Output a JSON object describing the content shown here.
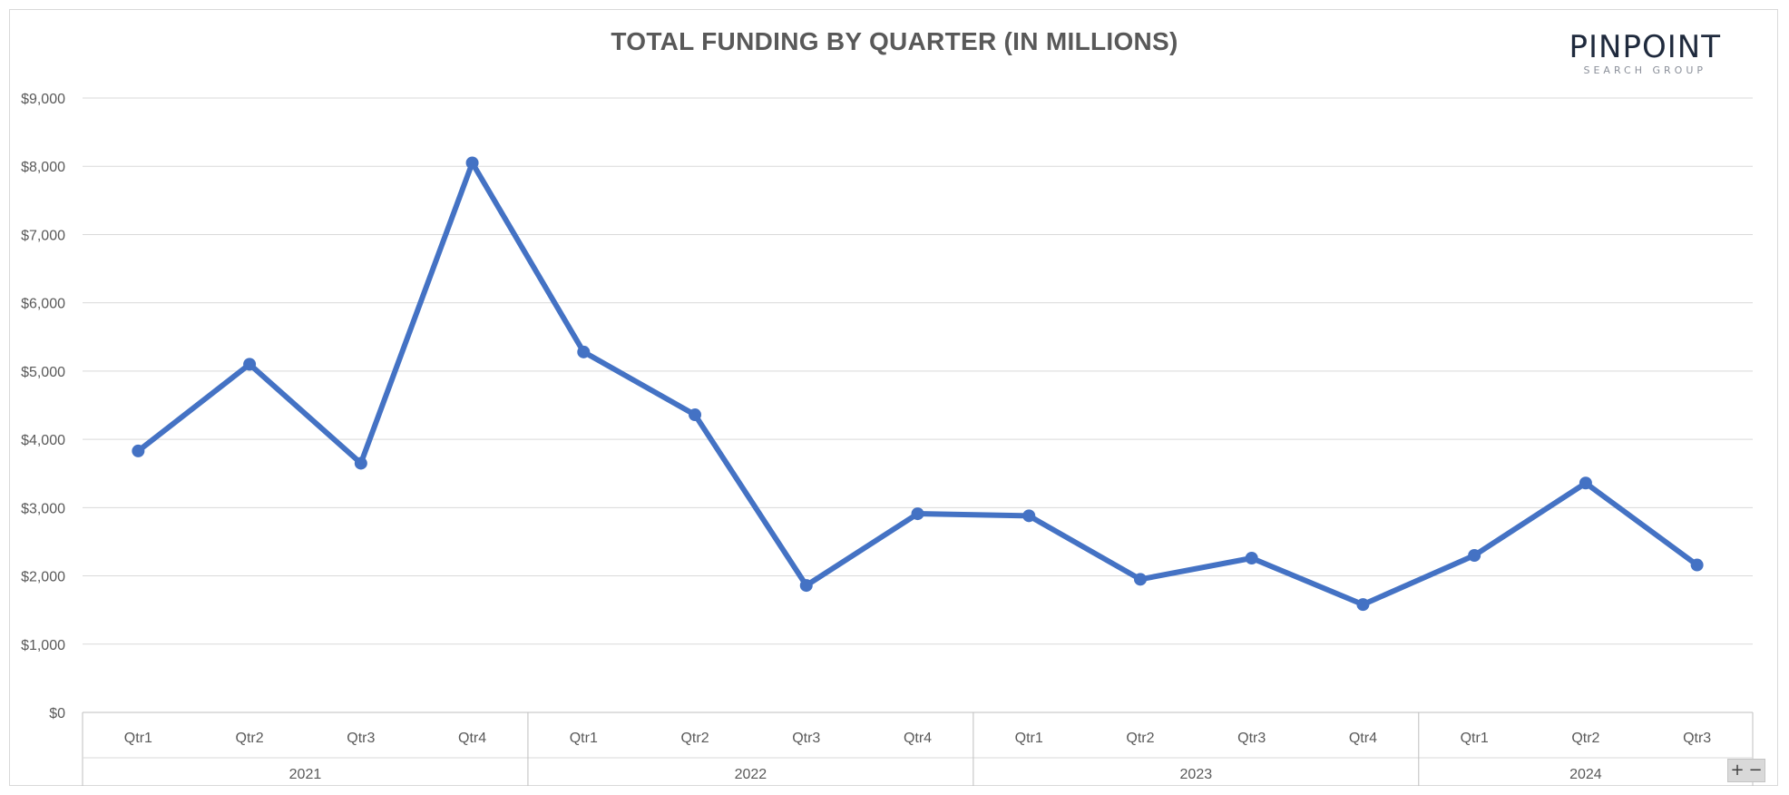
{
  "logo": {
    "main": "PINPOINT",
    "sub": "SEARCH GROUP"
  },
  "controls": {
    "zoom_in": "+",
    "zoom_out": "−"
  },
  "chart_data": {
    "type": "line",
    "title": "TOTAL FUNDING BY QUARTER (IN MILLIONS)",
    "xlabel": "",
    "ylabel": "",
    "ylim": [
      0,
      9000
    ],
    "yticks": [
      0,
      1000,
      2000,
      3000,
      4000,
      5000,
      6000,
      7000,
      8000,
      9000
    ],
    "ytick_labels": [
      "$0",
      "$1,000",
      "$2,000",
      "$3,000",
      "$4,000",
      "$5,000",
      "$6,000",
      "$7,000",
      "$8,000",
      "$9,000"
    ],
    "grid": true,
    "legend": "none",
    "line_color": "#4472c4",
    "groups": [
      {
        "label": "2021",
        "quarters": [
          "Qtr1",
          "Qtr2",
          "Qtr3",
          "Qtr4"
        ]
      },
      {
        "label": "2022",
        "quarters": [
          "Qtr1",
          "Qtr2",
          "Qtr3",
          "Qtr4"
        ]
      },
      {
        "label": "2023",
        "quarters": [
          "Qtr1",
          "Qtr2",
          "Qtr3",
          "Qtr4"
        ]
      },
      {
        "label": "2024",
        "quarters": [
          "Qtr1",
          "Qtr2",
          "Qtr3"
        ]
      }
    ],
    "series": [
      {
        "values": [
          3830,
          5100,
          3650,
          8050,
          5280,
          4360,
          1860,
          2910,
          2880,
          1950,
          2260,
          1580,
          2300,
          3360,
          2160
        ]
      }
    ]
  }
}
